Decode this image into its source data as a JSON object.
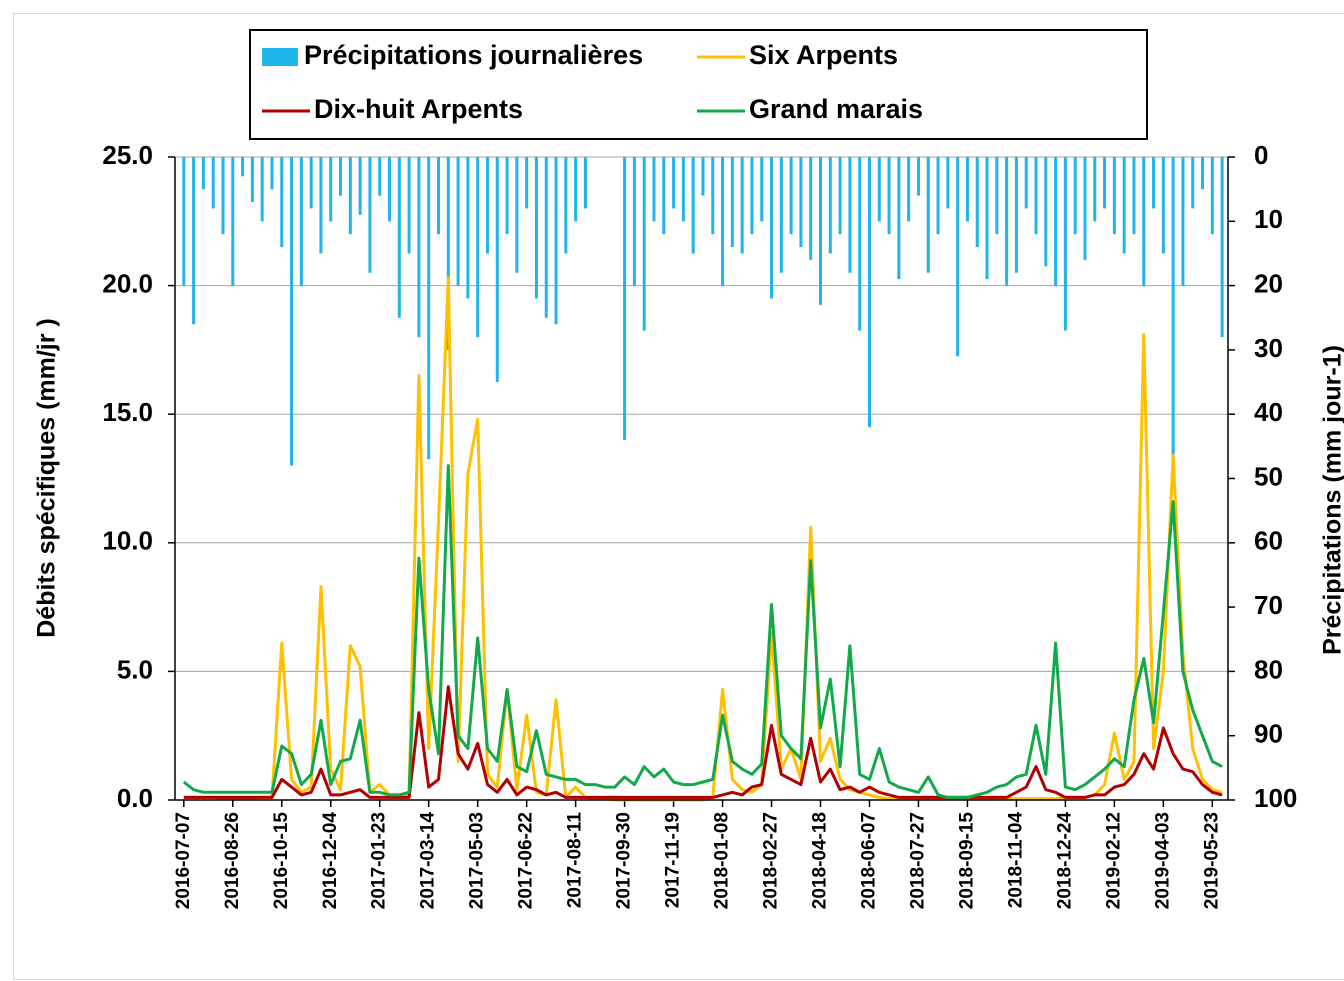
{
  "chart_data": {
    "type": "line",
    "ylabel": "Débits spécifiques (mm/jr )",
    "y2label": "Précipitations (mm jour-1)",
    "xlim": [
      "2016-06-28",
      "2019-06-08"
    ],
    "ylim": [
      0,
      25
    ],
    "yticks": [
      {
        "value": 0,
        "label": "0.0"
      },
      {
        "value": 5,
        "label": "5.0"
      },
      {
        "value": 10,
        "label": "10.0"
      },
      {
        "value": 15,
        "label": "15.0"
      },
      {
        "value": 20,
        "label": "20.0"
      },
      {
        "value": 25,
        "label": "25.0"
      }
    ],
    "y2lim": [
      0,
      100
    ],
    "y2_reversed": true,
    "y2ticks": [
      0,
      10,
      20,
      30,
      40,
      50,
      60,
      70,
      80,
      90,
      100
    ],
    "grid": true,
    "xticks": [
      "2016-07-07",
      "2016-08-26",
      "2016-10-15",
      "2016-12-04",
      "2017-01-23",
      "2017-03-14",
      "2017-05-03",
      "2017-06-22",
      "2017-08-11",
      "2017-09-30",
      "2017-11-19",
      "2018-01-08",
      "2018-02-27",
      "2018-04-18",
      "2018-06-07",
      "2018-07-27",
      "2018-09-15",
      "2018-11-04",
      "2018-12-24",
      "2019-02-12",
      "2019-04-03",
      "2019-05-23"
    ],
    "x": [
      "2016-07-07",
      "2016-07-17",
      "2016-07-27",
      "2016-08-06",
      "2016-08-16",
      "2016-08-26",
      "2016-09-05",
      "2016-09-15",
      "2016-09-25",
      "2016-10-05",
      "2016-10-15",
      "2016-10-25",
      "2016-11-04",
      "2016-11-14",
      "2016-11-24",
      "2016-12-04",
      "2016-12-14",
      "2016-12-24",
      "2017-01-03",
      "2017-01-13",
      "2017-01-23",
      "2017-02-02",
      "2017-02-12",
      "2017-02-22",
      "2017-03-04",
      "2017-03-14",
      "2017-03-24",
      "2017-04-03",
      "2017-04-13",
      "2017-04-23",
      "2017-05-03",
      "2017-05-13",
      "2017-05-23",
      "2017-06-02",
      "2017-06-12",
      "2017-06-22",
      "2017-07-02",
      "2017-07-12",
      "2017-07-22",
      "2017-08-01",
      "2017-08-11",
      "2017-08-21",
      "2017-08-31",
      "2017-09-10",
      "2017-09-20",
      "2017-09-30",
      "2017-10-10",
      "2017-10-20",
      "2017-10-30",
      "2017-11-09",
      "2017-11-19",
      "2017-11-29",
      "2017-12-09",
      "2017-12-19",
      "2017-12-29",
      "2018-01-08",
      "2018-01-18",
      "2018-01-28",
      "2018-02-07",
      "2018-02-17",
      "2018-02-27",
      "2018-03-09",
      "2018-03-19",
      "2018-03-29",
      "2018-04-08",
      "2018-04-18",
      "2018-04-28",
      "2018-05-08",
      "2018-05-18",
      "2018-05-28",
      "2018-06-07",
      "2018-06-17",
      "2018-06-27",
      "2018-07-07",
      "2018-07-17",
      "2018-07-27",
      "2018-08-06",
      "2018-08-16",
      "2018-08-26",
      "2018-09-05",
      "2018-09-15",
      "2018-09-25",
      "2018-10-05",
      "2018-10-15",
      "2018-10-25",
      "2018-11-04",
      "2018-11-14",
      "2018-11-24",
      "2018-12-04",
      "2018-12-14",
      "2018-12-24",
      "2019-01-03",
      "2019-01-13",
      "2019-01-23",
      "2019-02-02",
      "2019-02-12",
      "2019-02-22",
      "2019-03-04",
      "2019-03-14",
      "2019-03-24",
      "2019-04-03",
      "2019-04-13",
      "2019-04-23",
      "2019-05-03",
      "2019-05-13",
      "2019-05-23",
      "2019-06-02"
    ],
    "series": [
      {
        "name": "Précipitations journalières",
        "type": "bar",
        "axis": "y2",
        "color": "#1fb4ea",
        "values": [
          20,
          26,
          5,
          8,
          12,
          20,
          3,
          7,
          10,
          5,
          14,
          48,
          20,
          8,
          15,
          10,
          6,
          12,
          9,
          18,
          6,
          10,
          25,
          15,
          28,
          47,
          12,
          30,
          20,
          22,
          28,
          15,
          35,
          12,
          18,
          8,
          22,
          25,
          26,
          15,
          10,
          8,
          0,
          0,
          0,
          44,
          20,
          27,
          10,
          12,
          8,
          10,
          15,
          6,
          12,
          20,
          14,
          15,
          12,
          10,
          22,
          18,
          12,
          14,
          16,
          23,
          15,
          12,
          18,
          27,
          42,
          10,
          12,
          19,
          10,
          6,
          18,
          12,
          8,
          31,
          10,
          14,
          19,
          12,
          20,
          18,
          8,
          12,
          17,
          20,
          27,
          12,
          16,
          10,
          8,
          12,
          15,
          12,
          20,
          8,
          15,
          49,
          20,
          8,
          5,
          12,
          28
        ]
      },
      {
        "name": "Six Arpents",
        "type": "line",
        "color": "#ffc000",
        "values": [
          0.1,
          0.1,
          0.1,
          0.1,
          0.05,
          0.05,
          0.05,
          0.05,
          0.1,
          0.1,
          6.1,
          0.8,
          0.3,
          0.5,
          8.3,
          1.2,
          0.4,
          6.0,
          5.2,
          0.3,
          0.6,
          0.2,
          0.1,
          0.2,
          16.5,
          2.0,
          10.8,
          20.3,
          1.5,
          12.7,
          14.8,
          1.0,
          0.5,
          4.3,
          0.4,
          3.3,
          0.3,
          0.2,
          3.9,
          0.1,
          0.5,
          0.1,
          0.05,
          0.05,
          0,
          0,
          0,
          0,
          0,
          0,
          0,
          0,
          0,
          0,
          0.1,
          4.3,
          0.8,
          0.4,
          0.3,
          0.6,
          6.5,
          1.2,
          2.0,
          0.8,
          10.6,
          1.5,
          2.4,
          0.8,
          0.4,
          0.3,
          0.2,
          0.1,
          0.05,
          0.05,
          0.05,
          0.05,
          0.05,
          0.05,
          0.05,
          0.05,
          0.05,
          0.05,
          0.05,
          0.05,
          0.05,
          0.05,
          0.05,
          0.05,
          0.05,
          0.05,
          0.1,
          0.1,
          0.1,
          0.2,
          0.6,
          2.6,
          0.8,
          1.5,
          18.1,
          2.0,
          5.0,
          13.4,
          5.7,
          2.0,
          0.8,
          0.4,
          0.3
        ]
      },
      {
        "name": "Dix-huit Arpents",
        "type": "line",
        "color": "#b00000",
        "values": [
          0.1,
          0.1,
          0.1,
          0.1,
          0.1,
          0.1,
          0.1,
          0.1,
          0.1,
          0.1,
          0.8,
          0.5,
          0.2,
          0.3,
          1.2,
          0.2,
          0.2,
          0.3,
          0.4,
          0.1,
          0.1,
          0.1,
          0.1,
          0.1,
          3.4,
          0.5,
          0.8,
          4.4,
          1.8,
          1.2,
          2.2,
          0.6,
          0.3,
          0.8,
          0.2,
          0.5,
          0.4,
          0.2,
          0.3,
          0.1,
          0.1,
          0.1,
          0.1,
          0.1,
          0.1,
          0.1,
          0.1,
          0.1,
          0.1,
          0.1,
          0.1,
          0.1,
          0.1,
          0.1,
          0.1,
          0.2,
          0.3,
          0.2,
          0.5,
          0.6,
          2.9,
          1.0,
          0.8,
          0.6,
          2.4,
          0.7,
          1.2,
          0.4,
          0.5,
          0.3,
          0.5,
          0.3,
          0.2,
          0.1,
          0.1,
          0.1,
          0.1,
          0.1,
          0.1,
          0.1,
          0.1,
          0.1,
          0.1,
          0.1,
          0.1,
          0.3,
          0.5,
          1.3,
          0.4,
          0.3,
          0.1,
          0.1,
          0.1,
          0.2,
          0.2,
          0.5,
          0.6,
          1.0,
          1.8,
          1.2,
          2.8,
          1.8,
          1.2,
          1.1,
          0.6,
          0.3,
          0.2
        ]
      },
      {
        "name": "Grand marais",
        "type": "line",
        "color": "#13a84a",
        "values": [
          0.7,
          0.4,
          0.3,
          0.3,
          0.3,
          0.3,
          0.3,
          0.3,
          0.3,
          0.3,
          2.1,
          1.8,
          0.6,
          1.0,
          3.1,
          0.6,
          1.5,
          1.6,
          3.1,
          0.3,
          0.3,
          0.2,
          0.2,
          0.3,
          9.4,
          4.3,
          1.8,
          13.0,
          2.5,
          2.0,
          6.3,
          2.0,
          1.5,
          4.3,
          1.3,
          1.1,
          2.7,
          1.0,
          0.9,
          0.8,
          0.8,
          0.6,
          0.6,
          0.5,
          0.5,
          0.9,
          0.6,
          1.3,
          0.9,
          1.2,
          0.7,
          0.6,
          0.6,
          0.7,
          0.8,
          3.3,
          1.5,
          1.2,
          1.0,
          1.4,
          7.6,
          2.5,
          2.0,
          1.6,
          9.3,
          2.8,
          4.7,
          1.3,
          6.0,
          1.0,
          0.8,
          2.0,
          0.7,
          0.5,
          0.4,
          0.3,
          0.9,
          0.2,
          0.1,
          0.1,
          0.1,
          0.2,
          0.3,
          0.5,
          0.6,
          0.9,
          1.0,
          2.9,
          1.0,
          6.1,
          0.5,
          0.4,
          0.6,
          0.9,
          1.2,
          1.6,
          1.3,
          3.9,
          5.5,
          3.0,
          7.3,
          11.6,
          5.0,
          3.5,
          2.5,
          1.5,
          1.3
        ]
      }
    ]
  }
}
